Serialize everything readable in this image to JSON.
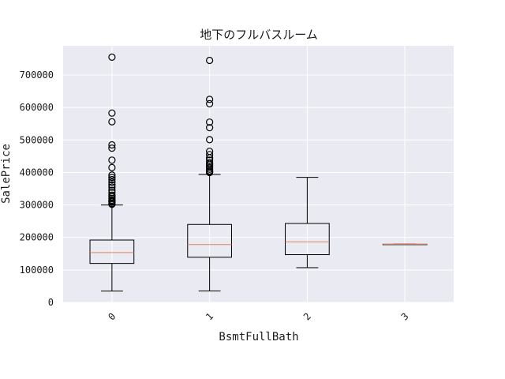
{
  "chart_data": {
    "type": "box",
    "title": "地下のフルバスルーム",
    "xlabel": "BsmtFullBath",
    "ylabel": "SalePrice",
    "categories": [
      "0",
      "1",
      "2",
      "3"
    ],
    "ylim": [
      0,
      790000
    ],
    "yticks": [
      0,
      100000,
      200000,
      300000,
      400000,
      500000,
      600000,
      700000
    ],
    "ytick_labels": [
      "0",
      "100000",
      "200000",
      "300000",
      "400000",
      "500000",
      "600000",
      "700000"
    ],
    "grid": true,
    "boxes": [
      {
        "category": "0",
        "whisker_low": 34900,
        "q1": 120000,
        "median": 153500,
        "q3": 192000,
        "whisker_high": 300000,
        "outliers": [
          302000,
          305000,
          310000,
          312000,
          315000,
          320000,
          325000,
          330000,
          338000,
          345000,
          355000,
          362000,
          370000,
          378000,
          385000,
          392000,
          415000,
          438000,
          475000,
          485000,
          556000,
          582900,
          755000
        ]
      },
      {
        "category": "1",
        "whisker_low": 35311,
        "q1": 139000,
        "median": 178000,
        "q3": 240000,
        "whisker_high": 394000,
        "outliers": [
          400000,
          402000,
          405000,
          410000,
          415000,
          420000,
          425000,
          430000,
          438000,
          445000,
          455000,
          465000,
          501000,
          538000,
          555000,
          611657,
          625000,
          745000
        ]
      },
      {
        "category": "2",
        "whisker_low": 107000,
        "q1": 147000,
        "median": 186500,
        "q3": 243000,
        "whisker_high": 385000,
        "outliers": []
      },
      {
        "category": "3",
        "whisker_low": 179000,
        "q1": 179000,
        "median": 179000,
        "q3": 179000,
        "whisker_high": 179000,
        "outliers": []
      }
    ],
    "colors": {
      "background": "#eaeaf2",
      "grid": "#ffffff",
      "box": "#000000",
      "median": "#e5845a"
    }
  }
}
